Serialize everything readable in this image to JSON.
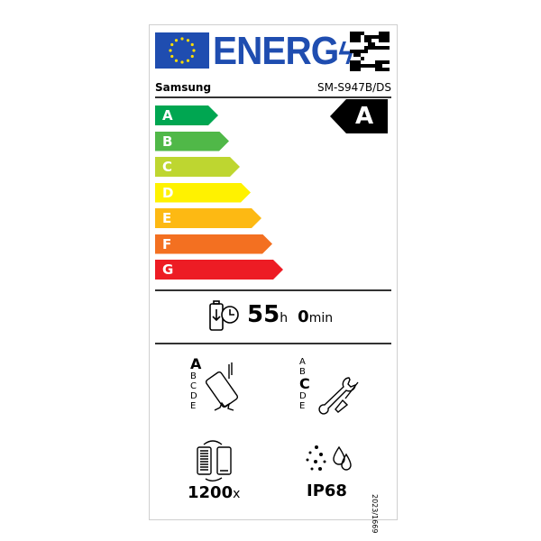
{
  "header": {
    "title": "ENERG",
    "brand": "Samsung",
    "model": "SM-S947B/DS"
  },
  "scale": {
    "classes": [
      {
        "letter": "A",
        "color": "#00a651"
      },
      {
        "letter": "B",
        "color": "#50b848"
      },
      {
        "letter": "C",
        "color": "#bed630"
      },
      {
        "letter": "D",
        "color": "#fff200"
      },
      {
        "letter": "E",
        "color": "#fdb913"
      },
      {
        "letter": "F",
        "color": "#f37021"
      },
      {
        "letter": "G",
        "color": "#ed1c24"
      }
    ],
    "rating": "A"
  },
  "battery": {
    "hours": "55",
    "hours_unit": "h",
    "minutes": "0",
    "minutes_unit": "min"
  },
  "drop": {
    "letters": [
      "A",
      "B",
      "C",
      "D",
      "E"
    ],
    "selected": "A"
  },
  "repair": {
    "letters": [
      "A",
      "B",
      "C",
      "D",
      "E"
    ],
    "selected": "C"
  },
  "cycles": {
    "value": "1200",
    "unit": "x"
  },
  "ip": {
    "value": "IP68"
  },
  "regulation": "2023/1669",
  "colors": {
    "eu_blue": "#1f4db0",
    "eu_star": "#ffdd00"
  }
}
